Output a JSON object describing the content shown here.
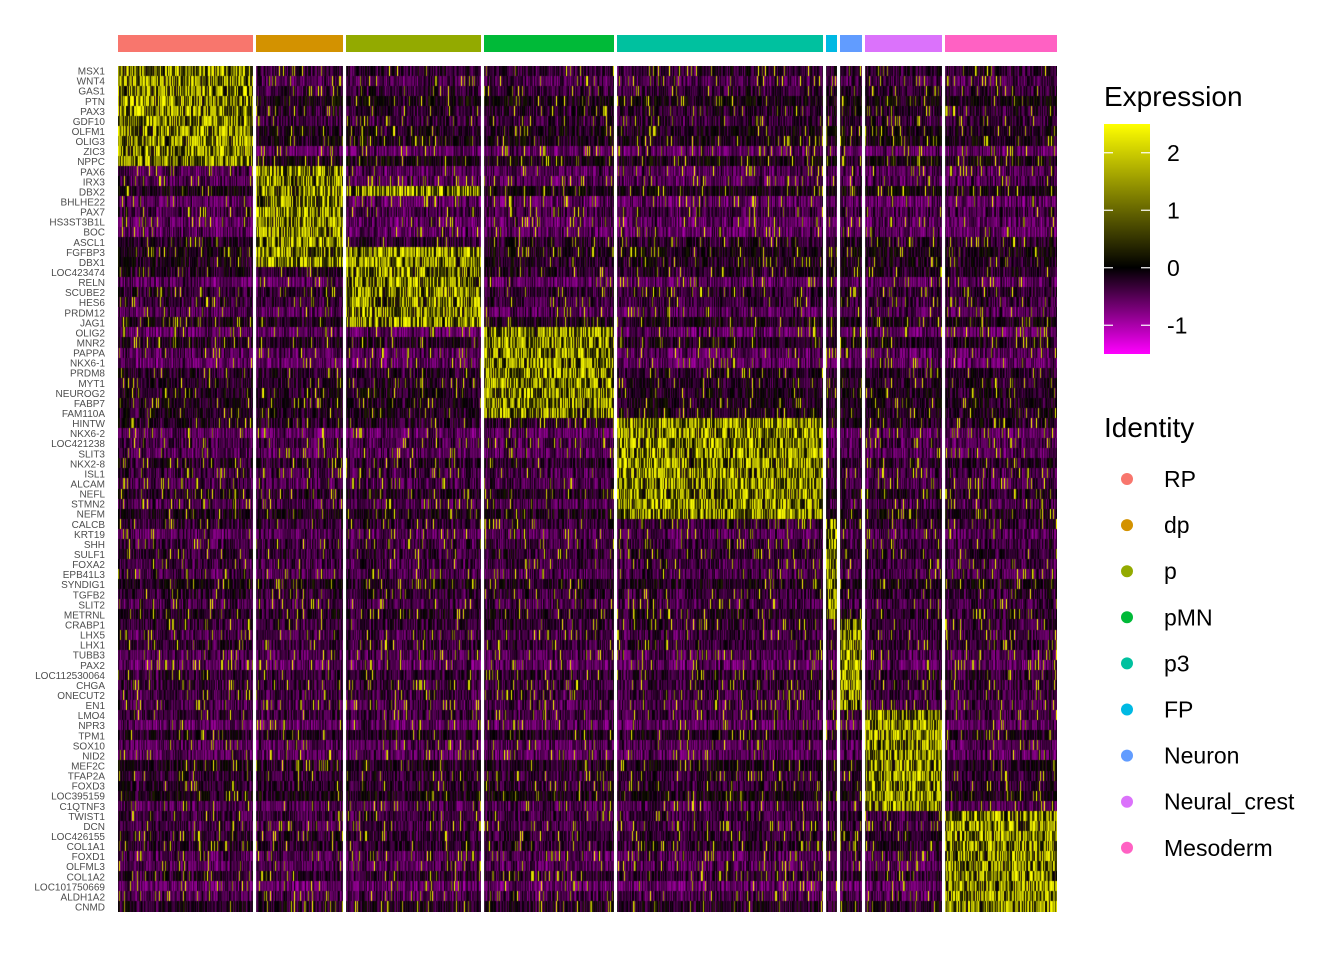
{
  "chart_data": {
    "type": "heatmap",
    "colors": {
      "low": "#FF00FF",
      "mid": "#000000",
      "high": "#FFFF00"
    },
    "color_scale": {
      "min": -1.5,
      "max": 2.5,
      "ticks": [
        2,
        1,
        0,
        -1
      ],
      "tick_labels": [
        "2",
        "1",
        "0",
        "-1"
      ]
    },
    "legend": {
      "expression_title": "Expression",
      "identity_title": "Identity"
    },
    "clusters": [
      {
        "name": "RP",
        "color": "#F8766D",
        "cells": 135
      },
      {
        "name": "dp",
        "color": "#D39200",
        "cells": 87
      },
      {
        "name": "p",
        "color": "#93AA00",
        "cells": 135
      },
      {
        "name": "pMN",
        "color": "#00BA38",
        "cells": 130
      },
      {
        "name": "p3",
        "color": "#00C19F",
        "cells": 206
      },
      {
        "name": "FP",
        "color": "#00B9E3",
        "cells": 11
      },
      {
        "name": "Neuron",
        "color": "#619CFF",
        "cells": 22
      },
      {
        "name": "Neural_crest",
        "color": "#DB72FB",
        "cells": 77
      },
      {
        "name": "Mesoderm",
        "color": "#FF61C3",
        "cells": 112
      }
    ],
    "genes": [
      "MSX1",
      "WNT4",
      "GAS1",
      "PTN",
      "PAX3",
      "GDF10",
      "OLFM1",
      "OLIG3",
      "ZIC3",
      "NPPC",
      "PAX6",
      "IRX3",
      "DBX2",
      "BHLHE22",
      "PAX7",
      "HS3ST3B1L",
      "BOC",
      "ASCL1",
      "FGFBP3",
      "DBX1",
      "LOC423474",
      "RELN",
      "SCUBE2",
      "HES6",
      "PRDM12",
      "JAG1",
      "OLIG2",
      "MNR2",
      "PAPPA",
      "NKX6-1",
      "PRDM8",
      "MYT1",
      "NEUROG2",
      "FABP7",
      "FAM110A",
      "HINTW",
      "NKX6-2",
      "LOC421238",
      "SLIT3",
      "NKX2-8",
      "ISL1",
      "ALCAM",
      "NEFL",
      "STMN2",
      "NEFM",
      "CALCB",
      "KRT19",
      "SHH",
      "SULF1",
      "FOXA2",
      "EPB41L3",
      "SYNDIG1",
      "TGFB2",
      "SLIT2",
      "METRNL",
      "CRABP1",
      "LHX5",
      "LHX1",
      "TUBB3",
      "PAX2",
      "LOC112530064",
      "CHGA",
      "ONECUT2",
      "EN1",
      "LMO4",
      "NPR3",
      "TPM1",
      "SOX10",
      "NID2",
      "MEF2C",
      "TFAP2A",
      "FOXD3",
      "LOC395159",
      "C1QTNF3",
      "TWIST1",
      "DCN",
      "LOC426155",
      "COL1A1",
      "FOXD1",
      "OLFML3",
      "COL1A2",
      "LOC101750669",
      "ALDH1A2",
      "CNMD"
    ],
    "marker_blocks": [
      {
        "cluster": "RP",
        "genes": [
          "MSX1",
          "WNT4",
          "GAS1",
          "PTN",
          "PAX3",
          "GDF10",
          "OLFM1",
          "OLIG3",
          "ZIC3",
          "NPPC"
        ]
      },
      {
        "cluster": "dp",
        "genes": [
          "PAX6",
          "IRX3",
          "DBX2",
          "BHLHE22",
          "PAX7",
          "HS3ST3B1L",
          "BOC",
          "ASCL1",
          "FGFBP3",
          "DBX1"
        ]
      },
      {
        "cluster": "p",
        "genes": [
          "DBX2",
          "FGFBP3",
          "DBX1",
          "LOC423474",
          "RELN",
          "SCUBE2",
          "HES6",
          "PRDM12",
          "JAG1"
        ]
      },
      {
        "cluster": "pMN",
        "genes": [
          "OLIG2",
          "MNR2",
          "PAPPA",
          "NKX6-1",
          "PRDM8",
          "MYT1",
          "NEUROG2",
          "FABP7",
          "FAM110A"
        ]
      },
      {
        "cluster": "p3",
        "genes": [
          "HINTW",
          "NKX6-2",
          "LOC421238",
          "SLIT3",
          "NKX2-8",
          "ISL1",
          "ALCAM",
          "NEFL",
          "STMN2",
          "NEFM"
        ]
      },
      {
        "cluster": "FP",
        "genes": [
          "CALCB",
          "KRT19",
          "SHH",
          "SULF1",
          "FOXA2",
          "EPB41L3",
          "SYNDIG1",
          "TGFB2",
          "SLIT2",
          "METRNL"
        ]
      },
      {
        "cluster": "Neuron",
        "genes": [
          "CRABP1",
          "LHX5",
          "LHX1",
          "TUBB3",
          "PAX2",
          "LOC112530064",
          "CHGA",
          "ONECUT2",
          "EN1"
        ]
      },
      {
        "cluster": "Neural_crest",
        "genes": [
          "LMO4",
          "NPR3",
          "TPM1",
          "SOX10",
          "NID2",
          "MEF2C",
          "TFAP2A",
          "FOXD3",
          "LOC395159",
          "C1QTNF3"
        ]
      },
      {
        "cluster": "Mesoderm",
        "genes": [
          "TWIST1",
          "DCN",
          "LOC426155",
          "COL1A1",
          "FOXD1",
          "OLFML3",
          "COL1A2",
          "LOC101750669",
          "ALDH1A2",
          "CNMD"
        ]
      }
    ]
  }
}
